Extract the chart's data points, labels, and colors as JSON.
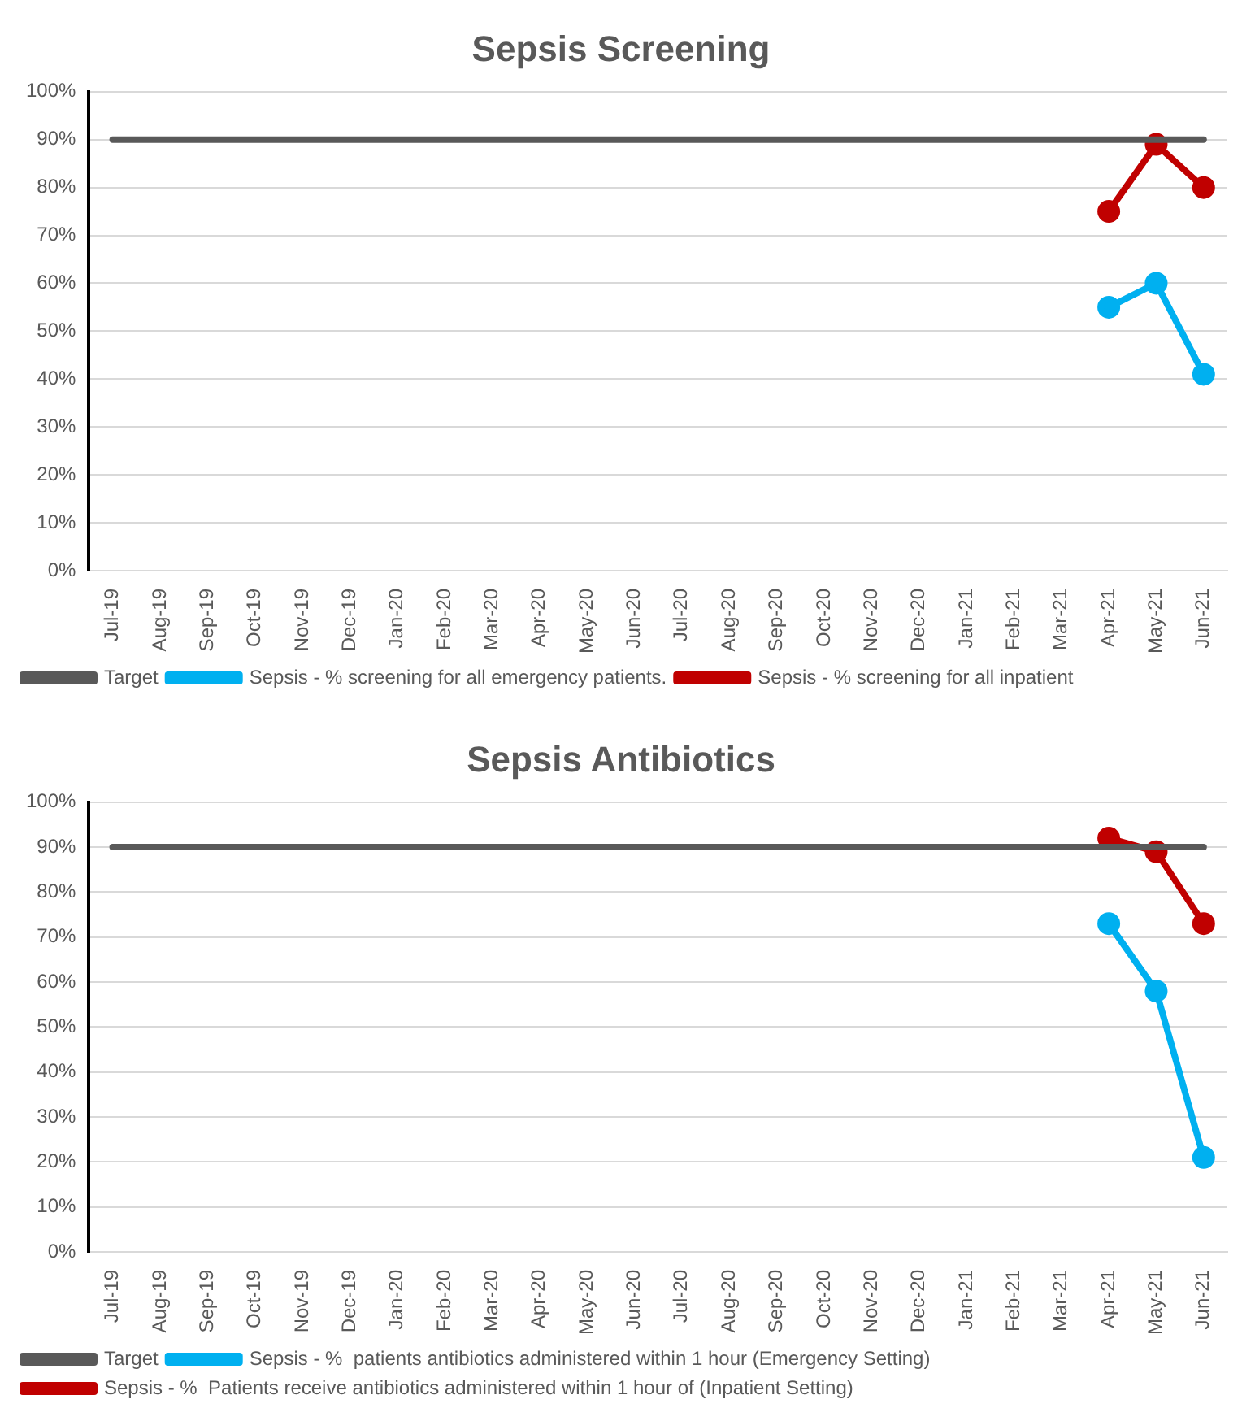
{
  "chart_data": [
    {
      "type": "line",
      "title": "Sepsis Screening",
      "categories": [
        "Jul-19",
        "Aug-19",
        "Sep-19",
        "Oct-19",
        "Nov-19",
        "Dec-19",
        "Jan-20",
        "Feb-20",
        "Mar-20",
        "Apr-20",
        "May-20",
        "Jun-20",
        "Jul-20",
        "Aug-20",
        "Sep-20",
        "Oct-20",
        "Nov-20",
        "Dec-20",
        "Jan-21",
        "Feb-21",
        "Mar-21",
        "Apr-21",
        "May-21",
        "Jun-21"
      ],
      "series": [
        {
          "name": "Target",
          "color": "#595959",
          "marker": "none",
          "values": [
            90,
            90,
            90,
            90,
            90,
            90,
            90,
            90,
            90,
            90,
            90,
            90,
            90,
            90,
            90,
            90,
            90,
            90,
            90,
            90,
            90,
            90,
            90,
            90
          ]
        },
        {
          "name": "Sepsis - % screening for all emergency patients.",
          "color": "#00b0f0",
          "marker": "circle",
          "values": [
            null,
            null,
            null,
            null,
            null,
            null,
            null,
            null,
            null,
            null,
            null,
            null,
            null,
            null,
            null,
            null,
            null,
            null,
            null,
            null,
            null,
            55,
            60,
            41
          ]
        },
        {
          "name": "Sepsis - % screening for all inpatient",
          "color": "#c00000",
          "marker": "circle",
          "values": [
            null,
            null,
            null,
            null,
            null,
            null,
            null,
            null,
            null,
            null,
            null,
            null,
            null,
            null,
            null,
            null,
            null,
            null,
            null,
            null,
            null,
            75,
            89,
            80
          ]
        }
      ],
      "ylim": [
        0,
        100
      ],
      "yticks": [
        {
          "value": 0,
          "label": "0%"
        },
        {
          "value": 10,
          "label": "10%"
        },
        {
          "value": 20,
          "label": "20%"
        },
        {
          "value": 30,
          "label": "30%"
        },
        {
          "value": 40,
          "label": "40%"
        },
        {
          "value": 50,
          "label": "50%"
        },
        {
          "value": 60,
          "label": "60%"
        },
        {
          "value": 70,
          "label": "70%"
        },
        {
          "value": 80,
          "label": "80%"
        },
        {
          "value": 90,
          "label": "90%"
        },
        {
          "value": 100,
          "label": "100%"
        }
      ],
      "grid": "y",
      "legend": "bottom"
    },
    {
      "type": "line",
      "title": "Sepsis Antibiotics",
      "categories": [
        "Jul-19",
        "Aug-19",
        "Sep-19",
        "Oct-19",
        "Nov-19",
        "Dec-19",
        "Jan-20",
        "Feb-20",
        "Mar-20",
        "Apr-20",
        "May-20",
        "Jun-20",
        "Jul-20",
        "Aug-20",
        "Sep-20",
        "Oct-20",
        "Nov-20",
        "Dec-20",
        "Jan-21",
        "Feb-21",
        "Mar-21",
        "Apr-21",
        "May-21",
        "Jun-21"
      ],
      "series": [
        {
          "name": "Target",
          "color": "#595959",
          "marker": "none",
          "values": [
            90,
            90,
            90,
            90,
            90,
            90,
            90,
            90,
            90,
            90,
            90,
            90,
            90,
            90,
            90,
            90,
            90,
            90,
            90,
            90,
            90,
            90,
            90,
            90
          ]
        },
        {
          "name": "Sepsis - %  patients antibiotics administered within 1 hour (Emergency Setting)",
          "color": "#00b0f0",
          "marker": "circle",
          "values": [
            null,
            null,
            null,
            null,
            null,
            null,
            null,
            null,
            null,
            null,
            null,
            null,
            null,
            null,
            null,
            null,
            null,
            null,
            null,
            null,
            null,
            73,
            58,
            21
          ]
        },
        {
          "name": "Sepsis - %  Patients receive antibiotics administered within 1 hour of (Inpatient Setting)",
          "color": "#c00000",
          "marker": "circle",
          "values": [
            null,
            null,
            null,
            null,
            null,
            null,
            null,
            null,
            null,
            null,
            null,
            null,
            null,
            null,
            null,
            null,
            null,
            null,
            null,
            null,
            null,
            92,
            89,
            73
          ]
        }
      ],
      "ylim": [
        0,
        100
      ],
      "yticks": [
        {
          "value": 0,
          "label": "0%"
        },
        {
          "value": 10,
          "label": "10%"
        },
        {
          "value": 20,
          "label": "20%"
        },
        {
          "value": 30,
          "label": "30%"
        },
        {
          "value": 40,
          "label": "40%"
        },
        {
          "value": 50,
          "label": "50%"
        },
        {
          "value": 60,
          "label": "60%"
        },
        {
          "value": 70,
          "label": "70%"
        },
        {
          "value": 80,
          "label": "80%"
        },
        {
          "value": 90,
          "label": "90%"
        },
        {
          "value": 100,
          "label": "100%"
        }
      ],
      "grid": "y",
      "legend": "bottom"
    }
  ]
}
